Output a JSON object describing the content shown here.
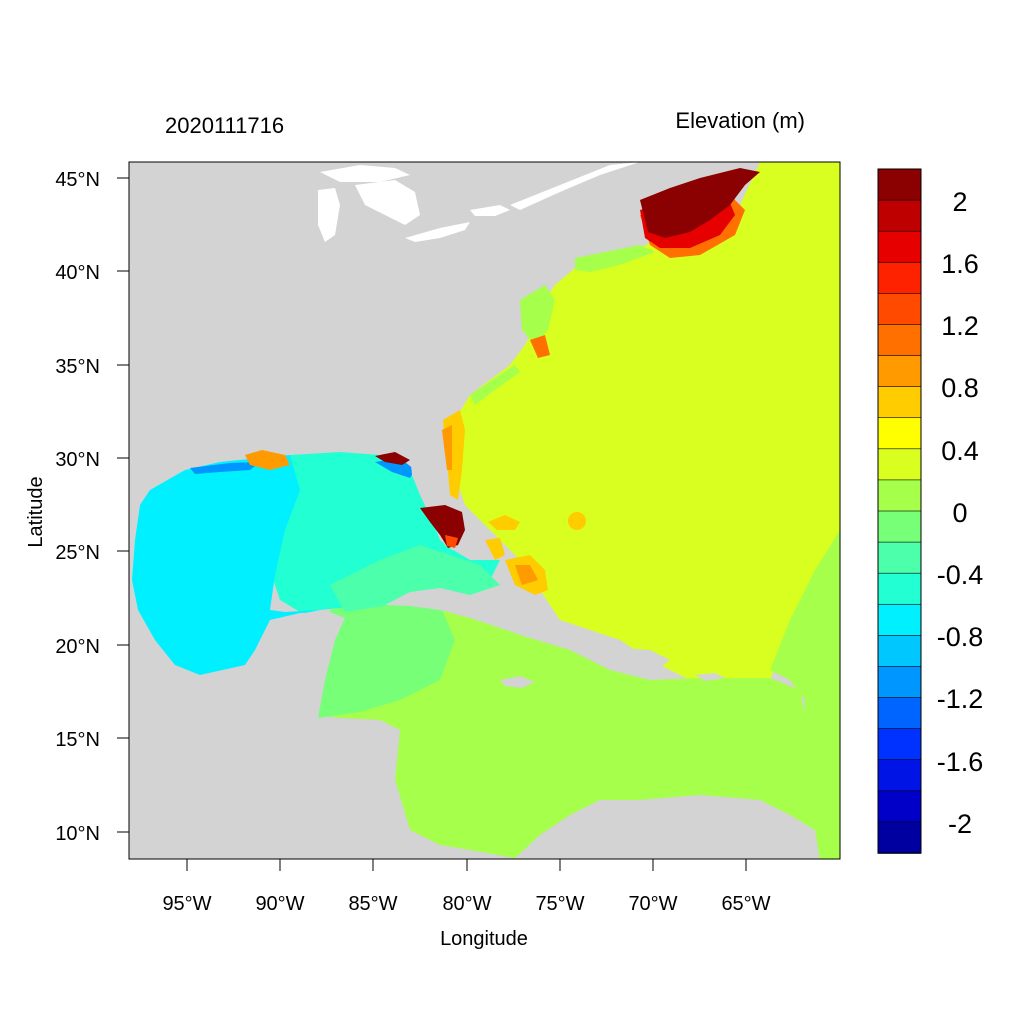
{
  "chart_data": {
    "type": "heatmap",
    "title_left": "2020111716",
    "title_right": "Elevation (m)",
    "xlabel": "Longitude",
    "ylabel": "Latitude",
    "x_ticks": [
      "95°W",
      "90°W",
      "85°W",
      "80°W",
      "75°W",
      "70°W",
      "65°W"
    ],
    "y_ticks": [
      "45°N",
      "40°N",
      "35°N",
      "30°N",
      "25°N",
      "20°N",
      "15°N",
      "10°N"
    ],
    "colorbar": {
      "labels": [
        "2",
        "1.6",
        "1.2",
        "0.8",
        "0.4",
        "0",
        "-0.4",
        "-0.8",
        "-1.2",
        "-1.6",
        "-2"
      ],
      "colors": [
        "#8b0000",
        "#be0000",
        "#e60000",
        "#ff2200",
        "#ff4a00",
        "#ff7000",
        "#ff9a00",
        "#ffcc00",
        "#ffff00",
        "#d9ff20",
        "#a6ff4a",
        "#78ff78",
        "#4cffaa",
        "#22ffd2",
        "#00f0ff",
        "#00c8ff",
        "#0096ff",
        "#0064ff",
        "#0032ff",
        "#0014e6",
        "#0000c8",
        "#0000a0"
      ]
    },
    "land_color": "#d3d3d3"
  }
}
